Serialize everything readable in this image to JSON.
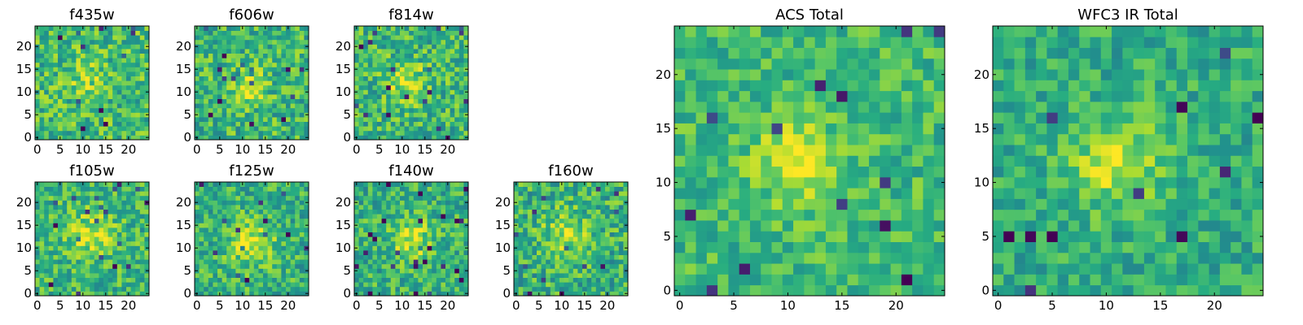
{
  "chart_data": [
    {
      "type": "heatmap",
      "title": "f435w",
      "size": 25,
      "xticks": [
        0,
        5,
        10,
        15,
        20
      ],
      "yticks": [
        0,
        5,
        10,
        15,
        20
      ],
      "xlim": [
        -0.5,
        24.5
      ],
      "ylim": [
        -0.5,
        24.5
      ],
      "colormap": "viridis",
      "blob": {
        "x": 11,
        "y": 13,
        "amplitude": 0.15,
        "sigma": 3
      },
      "noise": 0.22,
      "baseline": 0.68,
      "seed": 11
    },
    {
      "type": "heatmap",
      "title": "f606w",
      "size": 25,
      "xticks": [
        0,
        5,
        10,
        15,
        20
      ],
      "yticks": [
        0,
        5,
        10,
        15,
        20
      ],
      "xlim": [
        -0.5,
        24.5
      ],
      "ylim": [
        -0.5,
        24.5
      ],
      "colormap": "viridis",
      "blob": {
        "x": 11,
        "y": 11,
        "amplitude": 0.25,
        "sigma": 3
      },
      "noise": 0.22,
      "baseline": 0.66,
      "seed": 23
    },
    {
      "type": "heatmap",
      "title": "f814w",
      "size": 25,
      "xticks": [
        0,
        5,
        10,
        15,
        20
      ],
      "yticks": [
        0,
        5,
        10,
        15,
        20
      ],
      "xlim": [
        -0.5,
        24.5
      ],
      "ylim": [
        -0.5,
        24.5
      ],
      "colormap": "viridis",
      "blob": {
        "x": 11,
        "y": 12,
        "amplitude": 0.25,
        "sigma": 3
      },
      "noise": 0.22,
      "baseline": 0.66,
      "seed": 37
    },
    {
      "type": "heatmap",
      "title": "f105w",
      "size": 25,
      "xticks": [
        0,
        5,
        10,
        15,
        20
      ],
      "yticks": [
        0,
        5,
        10,
        15,
        20
      ],
      "xlim": [
        -0.5,
        24.5
      ],
      "ylim": [
        -0.5,
        24.5
      ],
      "colormap": "viridis",
      "blob": {
        "x": 12,
        "y": 13,
        "amplitude": 0.25,
        "sigma": 3.5
      },
      "noise": 0.2,
      "baseline": 0.66,
      "seed": 41
    },
    {
      "type": "heatmap",
      "title": "f125w",
      "size": 25,
      "xticks": [
        0,
        5,
        10,
        15,
        20
      ],
      "yticks": [
        0,
        5,
        10,
        15,
        20
      ],
      "xlim": [
        -0.5,
        24.5
      ],
      "ylim": [
        -0.5,
        24.5
      ],
      "colormap": "viridis",
      "blob": {
        "x": 12,
        "y": 11,
        "amplitude": 0.3,
        "sigma": 3.5
      },
      "noise": 0.2,
      "baseline": 0.64,
      "seed": 53
    },
    {
      "type": "heatmap",
      "title": "f140w",
      "size": 25,
      "xticks": [
        0,
        5,
        10,
        15,
        20
      ],
      "yticks": [
        0,
        5,
        10,
        15,
        20
      ],
      "xlim": [
        -0.5,
        24.5
      ],
      "ylim": [
        -0.5,
        24.5
      ],
      "colormap": "viridis",
      "blob": {
        "x": 12,
        "y": 12,
        "amplitude": 0.3,
        "sigma": 3
      },
      "noise": 0.2,
      "baseline": 0.64,
      "seed": 67
    },
    {
      "type": "heatmap",
      "title": "f160w",
      "size": 25,
      "xticks": [
        0,
        5,
        10,
        15,
        20
      ],
      "yticks": [
        0,
        5,
        10,
        15,
        20
      ],
      "xlim": [
        -0.5,
        24.5
      ],
      "ylim": [
        -0.5,
        24.5
      ],
      "colormap": "viridis",
      "blob": {
        "x": 11,
        "y": 13,
        "amplitude": 0.25,
        "sigma": 3.5
      },
      "noise": 0.22,
      "baseline": 0.64,
      "seed": 79
    },
    {
      "type": "heatmap",
      "title": "ACS Total",
      "size": 25,
      "xticks": [
        0,
        5,
        10,
        15,
        20
      ],
      "yticks": [
        0,
        5,
        10,
        15,
        20
      ],
      "xlim": [
        -0.5,
        24.5
      ],
      "ylim": [
        -0.5,
        24.5
      ],
      "colormap": "viridis",
      "blob": {
        "x": 11,
        "y": 12,
        "amplitude": 0.3,
        "sigma": 2.5
      },
      "noise": 0.16,
      "baseline": 0.68,
      "seed": 91
    },
    {
      "type": "heatmap",
      "title": "WFC3 IR Total",
      "size": 25,
      "xticks": [
        0,
        5,
        10,
        15,
        20
      ],
      "yticks": [
        0,
        5,
        10,
        15,
        20
      ],
      "xlim": [
        -0.5,
        24.5
      ],
      "ylim": [
        -0.5,
        24.5
      ],
      "colormap": "viridis",
      "blob": {
        "x": 11,
        "y": 12,
        "amplitude": 0.3,
        "sigma": 3
      },
      "noise": 0.16,
      "baseline": 0.62,
      "seed": 103
    }
  ]
}
